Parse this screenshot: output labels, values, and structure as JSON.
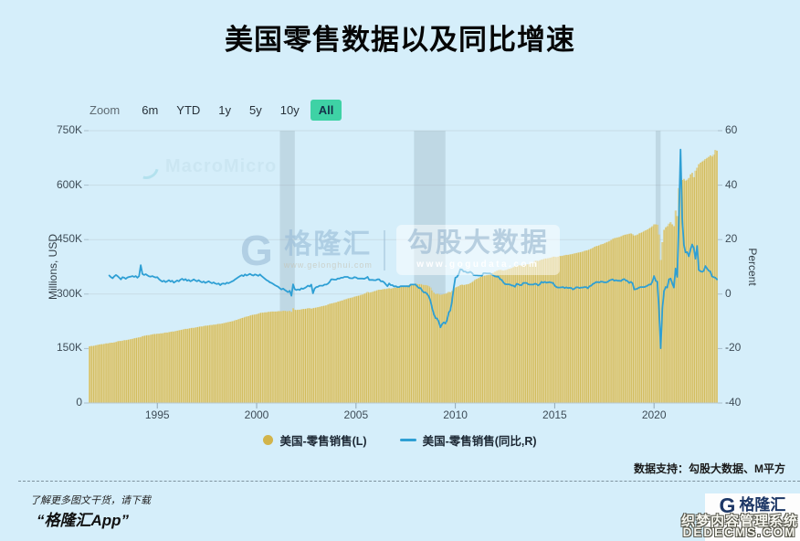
{
  "page": {
    "title": "美国零售数据以及同比增速"
  },
  "toolbar": {
    "zoom_label": "Zoom",
    "ranges": [
      "6m",
      "YTD",
      "1y",
      "5y",
      "10y",
      "All"
    ],
    "selected": "All",
    "selected_color": "#3ed2a5"
  },
  "watermarks": {
    "macromicro": "MacroMicro",
    "site_g": "G",
    "site_name": "格隆汇",
    "site_url": "www.gelonghui.com",
    "data_name": "勾股大数据",
    "data_url": "www.gogudata.com"
  },
  "chart_data": {
    "type": "bar+line",
    "title": "美国零售数据以及同比增速",
    "x_start_decimal_year": 1991.542,
    "months_per_point": 1,
    "x_ticks": [
      1995,
      2000,
      2005,
      2010,
      2015,
      2020
    ],
    "y_left": {
      "title": "Millions, USD",
      "labels": [
        "750K",
        "600K",
        "450K",
        "300K",
        "150K",
        "0"
      ],
      "min": 0,
      "max_k": 750
    },
    "y_right": {
      "title": "Percent",
      "labels": [
        "60",
        "40",
        "20",
        "0",
        "-20",
        "-40"
      ],
      "min": -40,
      "max": 60
    },
    "plot_bands": [
      [
        2001.17,
        2001.92
      ],
      [
        2007.92,
        2009.5
      ],
      [
        2020.08,
        2020.33
      ]
    ],
    "plot_band_color": "#8aa0ad",
    "grid": true,
    "legend_position": "bottom",
    "series": [
      {
        "name": "美国-零售销售(L)",
        "type": "bar",
        "axis": "left",
        "color": "#d0ba58",
        "gap_color": "#efe8ca",
        "unit": "K millions USD",
        "values": [
          156,
          157,
          157,
          158,
          159,
          160,
          161,
          162,
          162,
          163,
          164,
          164,
          165,
          166,
          166,
          167,
          168,
          170,
          171,
          171,
          172,
          173,
          173,
          174,
          175,
          176,
          177,
          178,
          179,
          180,
          181,
          182,
          184,
          185,
          186,
          187,
          187,
          188,
          189,
          190,
          190,
          191,
          191,
          192,
          192,
          193,
          194,
          194,
          195,
          196,
          197,
          197,
          198,
          199,
          200,
          201,
          202,
          203,
          204,
          204,
          205,
          206,
          207,
          207,
          208,
          209,
          210,
          211,
          211,
          212,
          213,
          213,
          214,
          215,
          215,
          216,
          216,
          217,
          218,
          218,
          219,
          220,
          221,
          222,
          223,
          224,
          225,
          226,
          228,
          229,
          231,
          232,
          234,
          235,
          237,
          238,
          239,
          241,
          242,
          243,
          244,
          245,
          246,
          248,
          249,
          249,
          250,
          250,
          251,
          251,
          252,
          252,
          252,
          252,
          253,
          253,
          253,
          254,
          254,
          253,
          253,
          254,
          251,
          261,
          257,
          256,
          257,
          257,
          258,
          259,
          259,
          260,
          261,
          261,
          260,
          261,
          262,
          263,
          264,
          265,
          266,
          267,
          268,
          269,
          271,
          273,
          274,
          275,
          276,
          277,
          279,
          280,
          282,
          283,
          285,
          286,
          288,
          289,
          290,
          291,
          293,
          294,
          295,
          296,
          298,
          299,
          301,
          303,
          306,
          304,
          305,
          306,
          308,
          309,
          311,
          312,
          312,
          313,
          314,
          314,
          315,
          316,
          315,
          316,
          317,
          318,
          319,
          320,
          321,
          322,
          323,
          323,
          324,
          325,
          326,
          327,
          328,
          329,
          328,
          327,
          328,
          326,
          325,
          325,
          324,
          322,
          318,
          310,
          304,
          300,
          301,
          300,
          298,
          299,
          300,
          301,
          303,
          306,
          305,
          309,
          314,
          318,
          320,
          322,
          325,
          326,
          325,
          326,
          327,
          328,
          330,
          333,
          336,
          340,
          342,
          344,
          347,
          348,
          350,
          351,
          352,
          353,
          355,
          357,
          359,
          362,
          364,
          366,
          367,
          366,
          365,
          366,
          367,
          369,
          370,
          372,
          374,
          377,
          378,
          379,
          379,
          378,
          380,
          381,
          382,
          382,
          383,
          385,
          387,
          391,
          392,
          391,
          393,
          395,
          396,
          398,
          398,
          399,
          400,
          401,
          403,
          403,
          402,
          403,
          405,
          405,
          406,
          407,
          408,
          408,
          409,
          410,
          411,
          412,
          413,
          414,
          415,
          416,
          417,
          419,
          420,
          421,
          423,
          425,
          427,
          430,
          432,
          433,
          435,
          437,
          438,
          440,
          442,
          444,
          446,
          449,
          452,
          454,
          455,
          456,
          457,
          459,
          461,
          463,
          464,
          465,
          466,
          467,
          465,
          461,
          462,
          464,
          467,
          469,
          471,
          474,
          476,
          478,
          481,
          484,
          487,
          492,
          492,
          491,
          464,
          394,
          443,
          477,
          484,
          487,
          494,
          498,
          492,
          487,
          530,
          515,
          592,
          618,
          614,
          617,
          612,
          615,
          620,
          630,
          634,
          622,
          640,
          648,
          658,
          662,
          665,
          668,
          672,
          675,
          678,
          682,
          679,
          684,
          697,
          695
        ]
      },
      {
        "name": "美国-零售销售(同比,R)",
        "type": "line",
        "axis": "right",
        "color": "#2e9fd4",
        "unit": "percent",
        "values": [
          null,
          null,
          null,
          null,
          null,
          null,
          null,
          null,
          null,
          null,
          null,
          null,
          6.8,
          6.2,
          5.8,
          6.5,
          7.0,
          6.6,
          6.0,
          5.4,
          6.2,
          6.0,
          5.6,
          6.1,
          6.3,
          6.4,
          6.6,
          6.3,
          6.6,
          6.0,
          6.6,
          10.6,
          7.4,
          7.0,
          7.3,
          6.9,
          6.5,
          6.4,
          6.6,
          6.3,
          6.1,
          6.2,
          5.5,
          5.0,
          4.6,
          4.9,
          4.4,
          4.7,
          5.1,
          4.6,
          4.9,
          4.2,
          4.6,
          5.0,
          4.7,
          5.3,
          5.6,
          5.1,
          5.5,
          4.9,
          5.2,
          4.7,
          5.0,
          5.4,
          5.0,
          4.7,
          5.1,
          4.6,
          4.3,
          4.6,
          4.1,
          4.4,
          4.7,
          4.3,
          4.0,
          4.3,
          3.9,
          3.7,
          3.9,
          3.3,
          3.8,
          3.9,
          3.7,
          4.2,
          4.0,
          4.3,
          4.6,
          4.9,
          5.4,
          5.8,
          6.2,
          6.6,
          6.9,
          6.6,
          7.2,
          6.8,
          7.1,
          7.4,
          7.0,
          6.8,
          7.2,
          7.0,
          6.7,
          7.2,
          6.6,
          6.1,
          5.6,
          5.1,
          4.8,
          4.3,
          4.1,
          3.7,
          3.3,
          3.0,
          2.7,
          2.1,
          1.7,
          2.0,
          1.5,
          1.1,
          0.7,
          1.2,
          -0.6,
          3.6,
          1.8,
          1.5,
          1.7,
          1.5,
          2.1,
          1.9,
          2.2,
          2.6,
          3.1,
          2.8,
          3.5,
          0.3,
          2.0,
          2.6,
          2.7,
          3.1,
          3.1,
          3.1,
          3.5,
          3.5,
          3.8,
          4.4,
          5.4,
          5.4,
          5.3,
          5.3,
          5.7,
          5.7,
          6.0,
          6.0,
          6.3,
          6.3,
          6.3,
          5.9,
          5.8,
          5.8,
          6.2,
          6.1,
          5.7,
          5.7,
          5.7,
          5.7,
          5.6,
          5.9,
          6.3,
          5.2,
          5.2,
          5.2,
          5.1,
          5.1,
          5.4,
          5.4,
          4.7,
          4.7,
          4.3,
          3.6,
          2.9,
          3.9,
          3.3,
          3.3,
          2.8,
          2.9,
          2.6,
          2.6,
          2.9,
          2.9,
          2.9,
          2.9,
          2.9,
          2.8,
          3.5,
          3.5,
          3.5,
          3.5,
          2.8,
          2.2,
          2.2,
          1.2,
          0.6,
          0.6,
          0.0,
          -0.9,
          -2.5,
          -5.2,
          -7.3,
          -8.8,
          -9.0,
          -10.2,
          -12.2,
          -11.0,
          -10.4,
          -10.8,
          -9.5,
          -6.8,
          -5.9,
          -2.5,
          2.2,
          6.0,
          6.3,
          7.3,
          9.1,
          9.0,
          8.3,
          8.3,
          7.9,
          7.9,
          8.2,
          7.8,
          7.0,
          6.9,
          6.9,
          6.8,
          6.8,
          6.7,
          7.7,
          7.7,
          7.6,
          7.6,
          7.6,
          7.2,
          6.8,
          6.5,
          6.4,
          6.4,
          5.5,
          5.2,
          4.3,
          3.7,
          3.6,
          3.6,
          3.5,
          3.2,
          3.1,
          2.7,
          3.8,
          3.6,
          3.3,
          3.3,
          4.1,
          4.1,
          4.1,
          3.6,
          3.5,
          3.5,
          3.5,
          3.8,
          3.7,
          3.2,
          3.6,
          4.5,
          4.2,
          4.5,
          4.2,
          4.3,
          4.4,
          4.2,
          4.1,
          3.1,
          2.6,
          2.4,
          2.4,
          2.5,
          2.6,
          2.2,
          2.5,
          2.2,
          2.3,
          2.2,
          1.7,
          2.0,
          2.5,
          2.5,
          2.2,
          2.4,
          2.4,
          2.6,
          2.6,
          2.1,
          2.9,
          3.1,
          3.7,
          4.0,
          4.4,
          4.4,
          4.3,
          4.6,
          4.5,
          4.3,
          4.3,
          4.5,
          5.0,
          5.2,
          5.4,
          4.9,
          5.1,
          4.9,
          4.9,
          4.8,
          5.3,
          5.5,
          5.0,
          4.8,
          4.1,
          4.5,
          4.0,
          1.7,
          1.8,
          2.0,
          2.4,
          2.6,
          2.6,
          2.6,
          2.8,
          3.1,
          3.5,
          3.5,
          4.6,
          6.6,
          4.9,
          4.5,
          -5.7,
          -19.9,
          -5.6,
          1.0,
          2.6,
          2.4,
          5.4,
          5.7,
          3.9,
          2.4,
          9.4,
          6.3,
          27.7,
          53.1,
          28.0,
          18.2,
          15.3,
          15.4,
          13.9,
          16.3,
          18.2,
          16.9,
          13.0,
          17.7,
          8.9,
          8.4,
          8.2,
          8.5,
          10.3,
          9.4,
          8.6,
          8.3,
          6.5,
          6.2,
          6.0,
          5.4
        ]
      }
    ]
  },
  "footer": {
    "support": "数据支持：勾股大数据、M平方",
    "promo_line1": "了解更多图文干货，请下载",
    "promo_line2": "“格隆汇App”",
    "logo_g": "G",
    "logo_text": "格隆汇",
    "overlay_line1": "织梦内容管理系统",
    "overlay_line2": "DEDECMS.COM"
  }
}
